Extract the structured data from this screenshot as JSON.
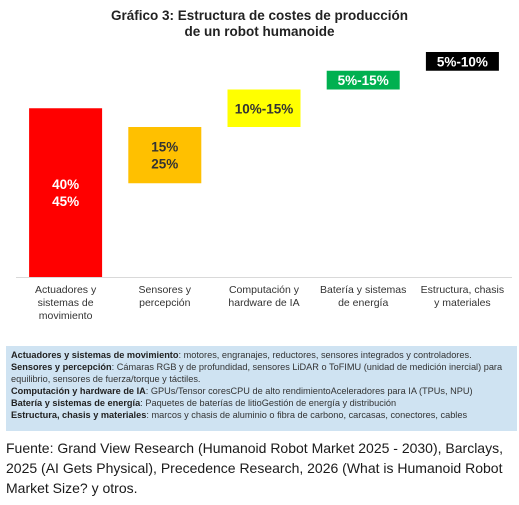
{
  "chart_data": {
    "type": "bar",
    "title_line1": "Gráfico 3: Estructura de costes de producción",
    "title_line2": "de un robot humanoide",
    "categories": [
      [
        "Actuadores y",
        "sistemas de",
        "movimiento"
      ],
      [
        "Sensores y",
        "percepción"
      ],
      [
        "Computación y",
        "hardware de IA"
      ],
      [
        "Batería y sistemas",
        "de energía"
      ],
      [
        "Estructura, chasis",
        "y materiales"
      ]
    ],
    "bars": [
      {
        "low": 0,
        "high": 45,
        "label_lines": [
          "40%",
          "45%"
        ],
        "color": "#ff0000",
        "text_color": "#ffffff"
      },
      {
        "low": 25,
        "high": 40,
        "label_lines": [
          "15%",
          "25%"
        ],
        "color": "#ffc000",
        "text_color": "#333333"
      },
      {
        "low": 40,
        "high": 50,
        "label_lines": [
          "10%-15%"
        ],
        "color": "#ffff00",
        "text_color": "#333333"
      },
      {
        "low": 50,
        "high": 55,
        "label_lines": [
          "5%-15%"
        ],
        "color": "#00b050",
        "text_color": "#ffffff"
      },
      {
        "low": 55,
        "high": 60,
        "label_lines": [
          "5%-10%"
        ],
        "color": "#000000",
        "text_color": "#ffffff"
      }
    ],
    "ylim": [
      0,
      60
    ],
    "grid": false
  },
  "legend": [
    {
      "term": "Actuadores y sistemas de movimiento",
      "desc": "motores, engranajes, reductores, sensores integrados y controladores."
    },
    {
      "term": "Sensores y percepción",
      "desc": "Cámaras RGB y de profundidad, sensores LiDAR o ToFIMU (unidad de medición inercial) para equilibrio, sensores de fuerza/torque y táctiles."
    },
    {
      "term": "Computación y hardware de IA",
      "desc": "GPUs/Tensor coresCPU de alto rendimientoAceleradores para IA (TPUs, NPU)"
    },
    {
      "term": "Batería y sistemas de energía",
      "desc": "Paquetes de baterías de litioGestión de energía y distribución"
    },
    {
      "term": "Estructura, chasis y materiales",
      "desc": "marcos y chasis de aluminio o fibra de carbono, carcasas, conectores, cables"
    }
  ],
  "source_text": "Fuente: Grand View Research (Humanoid Robot Market 2025 - 2030), Barclays, 2025 (AI Gets Physical), Precedence Research, 2026 (What is Humanoid Robot Market Size?  y otros."
}
